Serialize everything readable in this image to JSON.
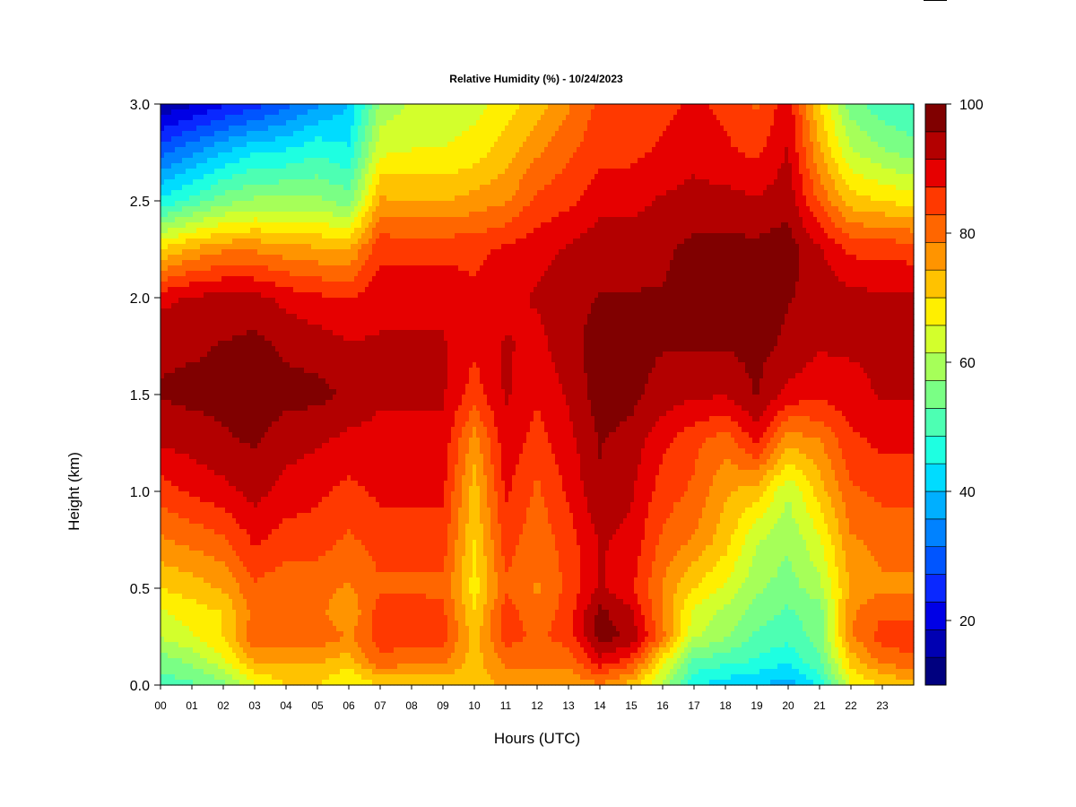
{
  "chart_data": {
    "type": "heatmap",
    "title": "Relative Humidity (%) - 10/24/2023",
    "xlabel": "Hours (UTC)",
    "ylabel": "Height (km)",
    "x_ticks": [
      "00",
      "01",
      "02",
      "03",
      "04",
      "05",
      "06",
      "07",
      "08",
      "09",
      "10",
      "11",
      "12",
      "13",
      "14",
      "15",
      "16",
      "17",
      "18",
      "19",
      "20",
      "21",
      "22",
      "23"
    ],
    "xlim": [
      0,
      24
    ],
    "y_ticks": [
      "0.0",
      "0.5",
      "1.0",
      "1.5",
      "2.0",
      "2.5",
      "3.0"
    ],
    "ylim": [
      0,
      3.0
    ],
    "colorbar": {
      "range": [
        10,
        100
      ],
      "step": 5,
      "tick_labels": [
        "20",
        "40",
        "60",
        "80",
        "100"
      ],
      "tick_values": [
        20,
        40,
        60,
        80,
        100
      ],
      "colors": [
        "#00007F",
        "#0000B2",
        "#0000E6",
        "#0A28FF",
        "#0055FF",
        "#0082FF",
        "#00AFFF",
        "#00DCFF",
        "#1EFFE1",
        "#4DFFB3",
        "#7AFF85",
        "#A6FF59",
        "#D3FF2C",
        "#FFEF00",
        "#FFC200",
        "#FF9400",
        "#FF6600",
        "#FF3900",
        "#E60000",
        "#B30000",
        "#800000"
      ]
    },
    "grid": false,
    "heights_km": [
      0.0,
      0.125,
      0.25,
      0.375,
      0.5,
      0.75,
      1.0,
      1.25,
      1.5,
      1.75,
      2.0,
      2.25,
      2.5,
      2.75,
      3.0
    ],
    "hours": [
      0,
      1,
      2,
      3,
      4,
      5,
      6,
      7,
      8,
      9,
      10,
      11,
      12,
      13,
      14,
      15,
      16,
      17,
      18,
      19,
      20,
      21,
      22,
      23,
      24
    ],
    "rh_percent_rows_by_height": [
      [
        50,
        52,
        55,
        65,
        70,
        70,
        65,
        70,
        70,
        70,
        72,
        75,
        75,
        75,
        78,
        72,
        60,
        45,
        42,
        40,
        38,
        45,
        65,
        70,
        72
      ],
      [
        55,
        58,
        65,
        75,
        75,
        75,
        72,
        82,
        80,
        80,
        72,
        80,
        80,
        80,
        90,
        85,
        68,
        52,
        50,
        48,
        45,
        52,
        72,
        80,
        82
      ],
      [
        62,
        65,
        70,
        82,
        82,
        82,
        78,
        85,
        85,
        85,
        72,
        85,
        82,
        85,
        98,
        95,
        80,
        62,
        58,
        52,
        50,
        55,
        78,
        85,
        85
      ],
      [
        65,
        68,
        70,
        80,
        80,
        80,
        75,
        85,
        85,
        84,
        70,
        85,
        80,
        85,
        97,
        92,
        78,
        65,
        60,
        55,
        52,
        55,
        78,
        82,
        82
      ],
      [
        70,
        72,
        75,
        82,
        80,
        80,
        78,
        82,
        82,
        82,
        68,
        82,
        78,
        84,
        92,
        88,
        78,
        70,
        65,
        58,
        55,
        60,
        75,
        78,
        78
      ],
      [
        78,
        80,
        82,
        88,
        85,
        85,
        82,
        85,
        85,
        85,
        70,
        85,
        80,
        85,
        92,
        90,
        82,
        78,
        72,
        62,
        58,
        65,
        78,
        80,
        80
      ],
      [
        85,
        88,
        90,
        93,
        90,
        88,
        86,
        88,
        88,
        88,
        72,
        88,
        82,
        88,
        95,
        92,
        85,
        82,
        75,
        72,
        62,
        72,
        82,
        84,
        84
      ],
      [
        92,
        93,
        95,
        96,
        93,
        92,
        90,
        90,
        90,
        90,
        76,
        90,
        85,
        90,
        96,
        94,
        88,
        84,
        80,
        88,
        75,
        78,
        86,
        88,
        88
      ],
      [
        96,
        97,
        97,
        99,
        97,
        97,
        95,
        92,
        92,
        92,
        85,
        92,
        88,
        92,
        98,
        97,
        94,
        92,
        92,
        96,
        90,
        88,
        90,
        92,
        92
      ],
      [
        95,
        95,
        96,
        97,
        95,
        94,
        92,
        92,
        92,
        92,
        88,
        92,
        90,
        94,
        98,
        97,
        96,
        96,
        96,
        97,
        95,
        92,
        92,
        92,
        92
      ],
      [
        90,
        92,
        93,
        93,
        90,
        88,
        87,
        90,
        90,
        90,
        88,
        90,
        92,
        94,
        96,
        96,
        96,
        97,
        97,
        97,
        96,
        94,
        93,
        92,
        92
      ],
      [
        70,
        75,
        78,
        78,
        76,
        75,
        74,
        86,
        86,
        86,
        86,
        88,
        90,
        92,
        94,
        94,
        95,
        97,
        97,
        97,
        98,
        92,
        86,
        86,
        85
      ],
      [
        45,
        50,
        55,
        58,
        58,
        58,
        55,
        75,
        74,
        74,
        76,
        78,
        84,
        86,
        90,
        90,
        92,
        93,
        93,
        92,
        94,
        82,
        72,
        70,
        68
      ],
      [
        30,
        35,
        40,
        44,
        45,
        48,
        45,
        65,
        66,
        66,
        68,
        72,
        78,
        82,
        86,
        86,
        88,
        90,
        88,
        86,
        92,
        75,
        62,
        58,
        55
      ],
      [
        15,
        18,
        22,
        25,
        30,
        35,
        40,
        58,
        62,
        62,
        64,
        68,
        72,
        78,
        84,
        84,
        86,
        88,
        86,
        82,
        90,
        70,
        55,
        50,
        48
      ]
    ]
  }
}
